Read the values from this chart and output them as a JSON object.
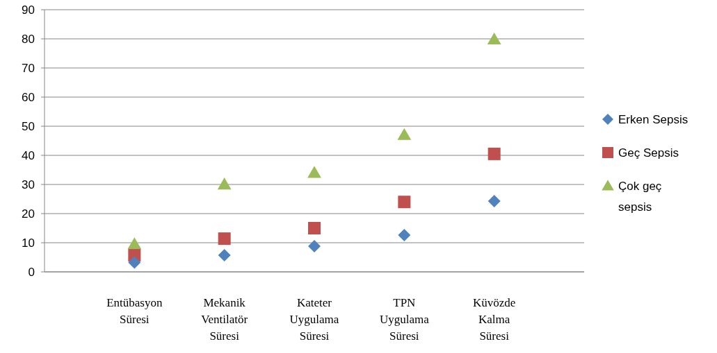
{
  "chart_data": {
    "type": "scatter",
    "categories": [
      "Entübasyon Süresi",
      "Mekanik Ventilatör Süresi",
      "Kateter Uygulama Süresi",
      "TPN Uygulama Süresi",
      "Küvözde Kalma Süresi"
    ],
    "series": [
      {
        "name": "Erken Sepsis",
        "color": "#4f81bd",
        "marker": "diamond",
        "values": [
          3.2,
          5.7,
          8.8,
          12.6,
          24.3
        ]
      },
      {
        "name": "Geç Sepsis",
        "color": "#c0504d",
        "marker": "square",
        "values": [
          5.7,
          11.4,
          15,
          24,
          40.5
        ]
      },
      {
        "name": "Çok geç sepsis",
        "color": "#9bbb59",
        "marker": "triangle",
        "values": [
          9.5,
          30,
          34,
          47,
          79.8
        ]
      }
    ],
    "ylim": [
      0,
      90
    ],
    "yticks": [
      0,
      10,
      20,
      30,
      40,
      50,
      60,
      70,
      80,
      90
    ],
    "grid": "y",
    "legend": "right"
  }
}
